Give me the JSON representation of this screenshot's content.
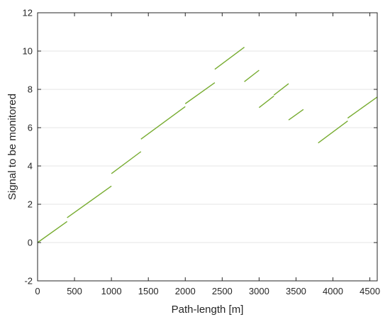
{
  "chart_data": {
    "type": "line",
    "title": "",
    "xlabel": "Path-length [m]",
    "ylabel": "Signal to be monitored",
    "xlim": [
      0,
      4600
    ],
    "ylim": [
      -2,
      12
    ],
    "xticks": [
      0,
      500,
      1000,
      1500,
      2000,
      2500,
      3000,
      3500,
      4000,
      4500
    ],
    "yticks": [
      -2,
      0,
      2,
      4,
      6,
      8,
      10,
      12
    ],
    "grid": "horizontal",
    "series_color": "#77ac30",
    "series": [
      {
        "segments": [
          {
            "x": [
              0,
              400
            ],
            "y": [
              0.0,
              1.1
            ]
          },
          {
            "x": [
              400,
              1000
            ],
            "y": [
              1.3,
              2.95
            ]
          },
          {
            "x": [
              1000,
              1400
            ],
            "y": [
              3.6,
              4.75
            ]
          },
          {
            "x": [
              1400,
              2000
            ],
            "y": [
              5.4,
              7.1
            ]
          },
          {
            "x": [
              2000,
              2400
            ],
            "y": [
              7.25,
              8.35
            ]
          },
          {
            "x": [
              2400,
              2800
            ],
            "y": [
              9.05,
              10.2
            ]
          },
          {
            "x": [
              2800,
              3000
            ],
            "y": [
              8.4,
              9.0
            ]
          },
          {
            "x": [
              3000,
              3200
            ],
            "y": [
              7.05,
              7.65
            ]
          },
          {
            "x": [
              3200,
              3400
            ],
            "y": [
              7.7,
              8.3
            ]
          },
          {
            "x": [
              3400,
              3600
            ],
            "y": [
              6.4,
              6.95
            ]
          },
          {
            "x": [
              3800,
              4200
            ],
            "y": [
              5.2,
              6.35
            ]
          },
          {
            "x": [
              4200,
              4600
            ],
            "y": [
              6.5,
              7.6
            ]
          }
        ]
      }
    ]
  }
}
